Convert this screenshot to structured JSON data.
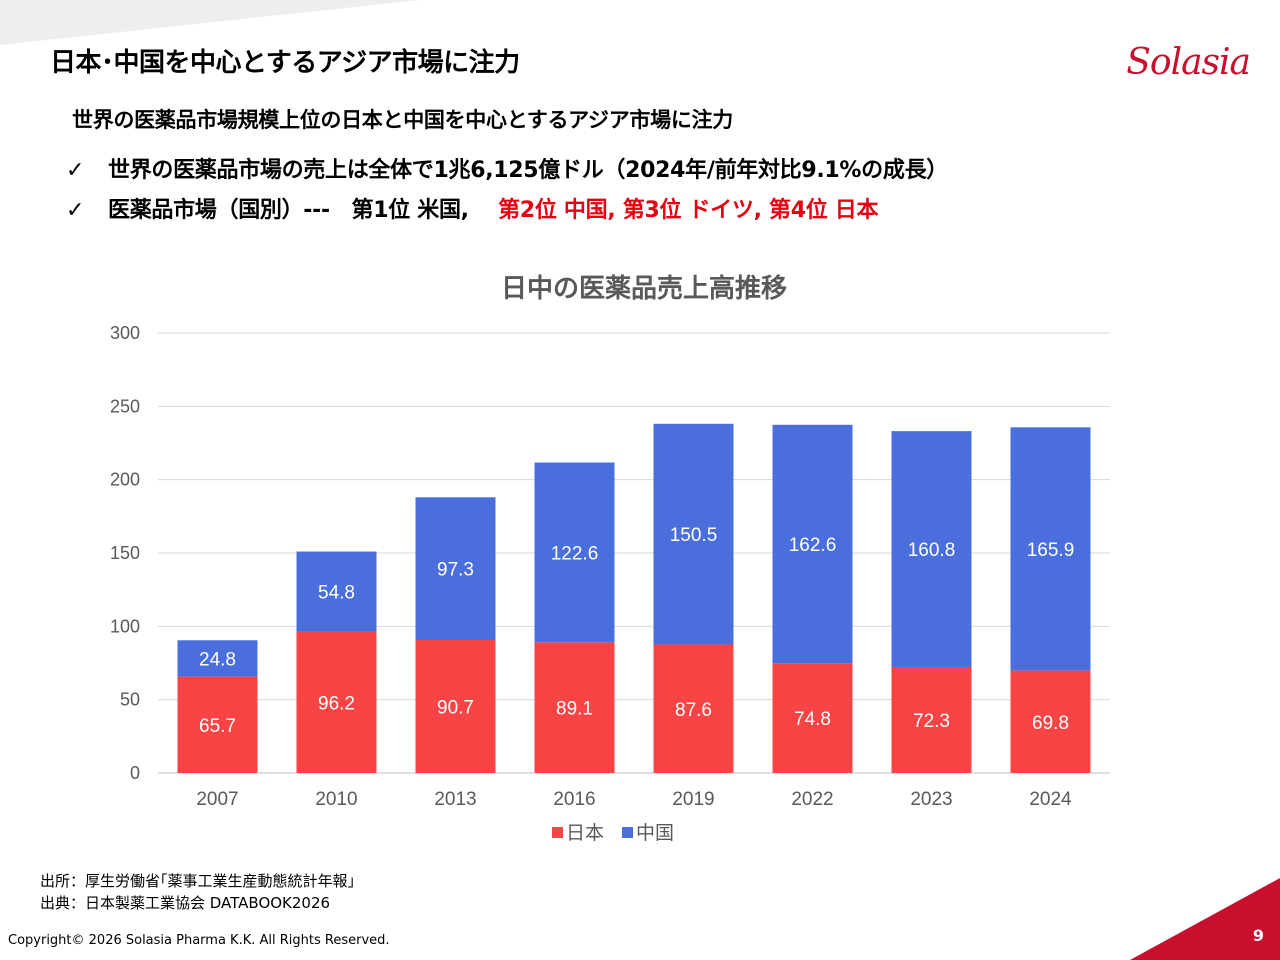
{
  "slide": {
    "title": "日本･中国を中心とするアジア市場に注力",
    "logo": "Solasia",
    "subtitle": "世界の医薬品市場規模上位の日本と中国を中心とするアジア市場に注力",
    "bullet1": "世界の医薬品市場の売上は全体で1兆6,125億ドル（2024年/前年対比9.1%の成長）",
    "bullet2_black": "医薬品市場（国別）---　第1位 米国,",
    "bullet2_red": "第2位 中国,  第3位 ドイツ, 第4位 日本",
    "check_mark": "✓",
    "source1": "出所：厚生労働省｢薬事工業生産動態統計年報｣",
    "source2": "出典：日本製薬工業協会 DATABOOK2026",
    "copyright": "Copyright© 2026 Solasia Pharma K.K. All Rights Reserved.",
    "page_number": "9"
  },
  "colors": {
    "japan": "#f84444",
    "china": "#4a6fdc",
    "accent_red": "#e60012",
    "brand": "#c8102e"
  },
  "chart_data": {
    "type": "bar",
    "stacked": true,
    "title": "日中の医薬品売上高推移",
    "categories": [
      "2007",
      "2010",
      "2013",
      "2016",
      "2019",
      "2022",
      "2023",
      "2024"
    ],
    "series": [
      {
        "name": "日本",
        "values": [
          65.7,
          96.2,
          90.7,
          89.1,
          87.6,
          74.8,
          72.3,
          69.8
        ]
      },
      {
        "name": "中国",
        "values": [
          24.8,
          54.8,
          97.3,
          122.6,
          150.5,
          162.6,
          160.8,
          165.9
        ]
      }
    ],
    "ylim": [
      0,
      300
    ],
    "yticks": [
      0,
      50,
      100,
      150,
      200,
      250,
      300
    ],
    "grid": true,
    "legend": "bottom-center",
    "xlabel": "",
    "ylabel": ""
  }
}
